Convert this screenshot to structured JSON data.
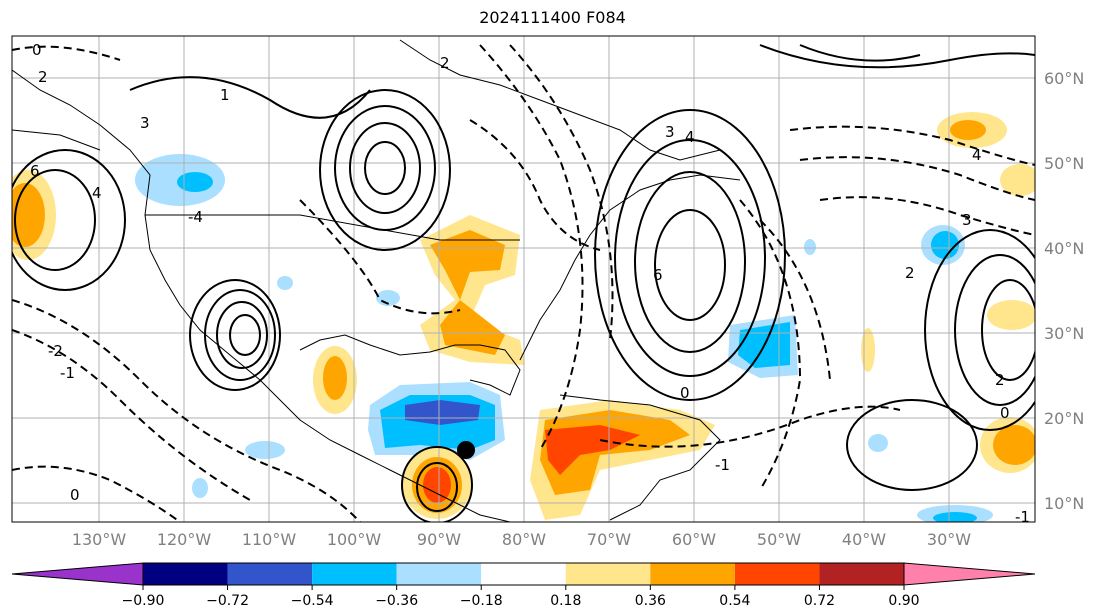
{
  "title": "2024111400 F084",
  "map": {
    "lon_labels": [
      "130°W",
      "120°W",
      "110°W",
      "100°W",
      "90°W",
      "80°W",
      "70°W",
      "60°W",
      "50°W",
      "40°W",
      "30°W"
    ],
    "lat_labels": [
      "60°N",
      "50°N",
      "40°N",
      "30°N",
      "20°N",
      "10°N"
    ],
    "extent": {
      "lon_min": -140,
      "lon_max": -20,
      "lat_min": 8,
      "lat_max": 66
    },
    "gridlines": true,
    "contour_labels": [
      "0",
      "2",
      "4",
      "6",
      "-2",
      "-4",
      "3",
      "-1",
      "0",
      "6",
      "3",
      "4",
      "2",
      "-1",
      "0",
      "2",
      "4",
      "3",
      "0",
      "-1",
      "2",
      "1"
    ],
    "marker": {
      "type": "black-dot",
      "lon": -86.5,
      "lat": 16.5
    }
  },
  "colorbar": {
    "ticks": [
      "−0.90",
      "−0.72",
      "−0.54",
      "−0.36",
      "−0.18",
      "0.18",
      "0.36",
      "0.54",
      "0.72",
      "0.90"
    ],
    "colors": [
      "#9933cc",
      "#000080",
      "#3355cc",
      "#00bfff",
      "#aadfff",
      "#ffffff",
      "#ffe68c",
      "#ffa500",
      "#ff4500",
      "#b22222",
      "#ff80aa"
    ]
  }
}
